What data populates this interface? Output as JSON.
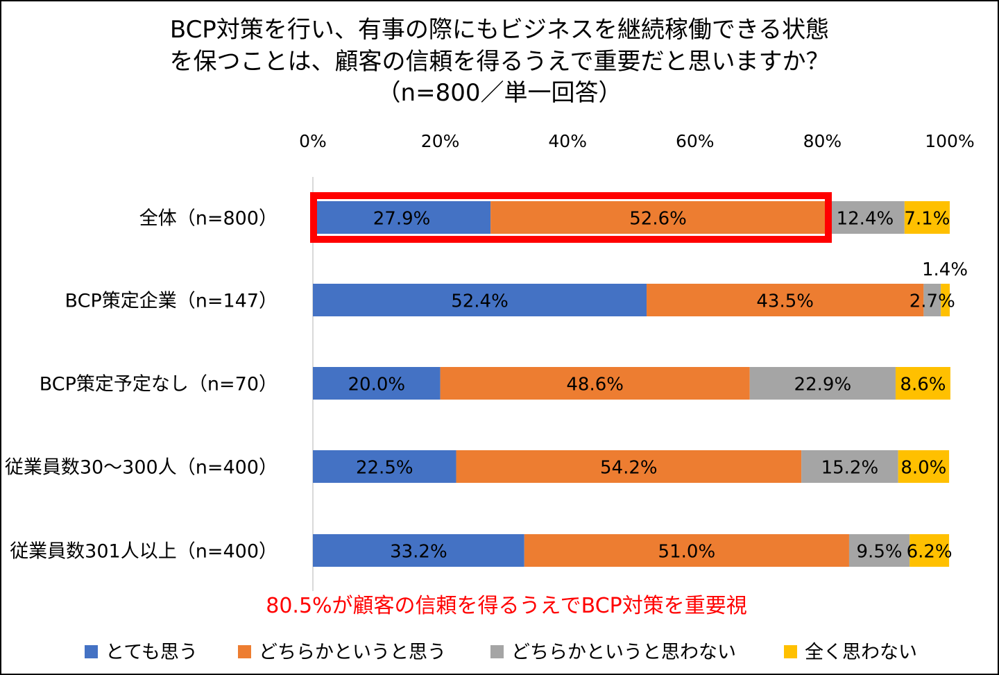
{
  "chart_data": {
    "type": "bar",
    "orientation": "horizontal",
    "stacked": "percent",
    "title_lines": [
      "BCP対策を行い、有事の際にもビジネスを継続稼働できる状態",
      "を保つことは、顧客の信頼を得るうえで重要だと思いますか？",
      "（n=800／単一回答）"
    ],
    "xlim": [
      0,
      100
    ],
    "x_ticks": [
      "0%",
      "20%",
      "40%",
      "60%",
      "80%",
      "100%"
    ],
    "grid": false,
    "legend_placement": "bottom",
    "categories": [
      "全体（n=800）",
      "BCP策定企業（n=147）",
      "BCP策定予定なし（n=70）",
      "従業員数30～300人（n=400）",
      "従業員数301人以上（n=400）"
    ],
    "series": [
      {
        "name": "とても思う",
        "color": "#4472C4",
        "values": [
          27.9,
          52.4,
          20.0,
          22.5,
          33.2
        ],
        "labels": [
          "27.9%",
          "52.4%",
          "20.0%",
          "22.5%",
          "33.2%"
        ]
      },
      {
        "name": "どちらかというと思う",
        "color": "#ED7D31",
        "values": [
          52.6,
          43.5,
          48.6,
          54.2,
          51.0
        ],
        "labels": [
          "52.6%",
          "43.5%",
          "48.6%",
          "54.2%",
          "51.0%"
        ]
      },
      {
        "name": "どちらかというと思わない",
        "color": "#A5A5A5",
        "values": [
          12.4,
          2.7,
          22.9,
          15.2,
          9.5
        ],
        "labels": [
          "12.4%",
          "2.7%",
          "22.9%",
          "15.2%",
          "9.5%"
        ]
      },
      {
        "name": "全く思わない",
        "color": "#FFC000",
        "values": [
          7.1,
          1.4,
          8.6,
          8.0,
          6.2
        ],
        "labels": [
          "7.1%",
          "1.4%",
          "8.6%",
          "8.0%",
          "6.2%"
        ]
      }
    ],
    "highlight": {
      "category_index": 0,
      "from": 0,
      "to": 80.5,
      "color": "#FF0000"
    },
    "annotation": {
      "text": "80.5%が顧客の信頼を得るうえでBCP対策を重要視",
      "color": "#FF0000"
    }
  }
}
